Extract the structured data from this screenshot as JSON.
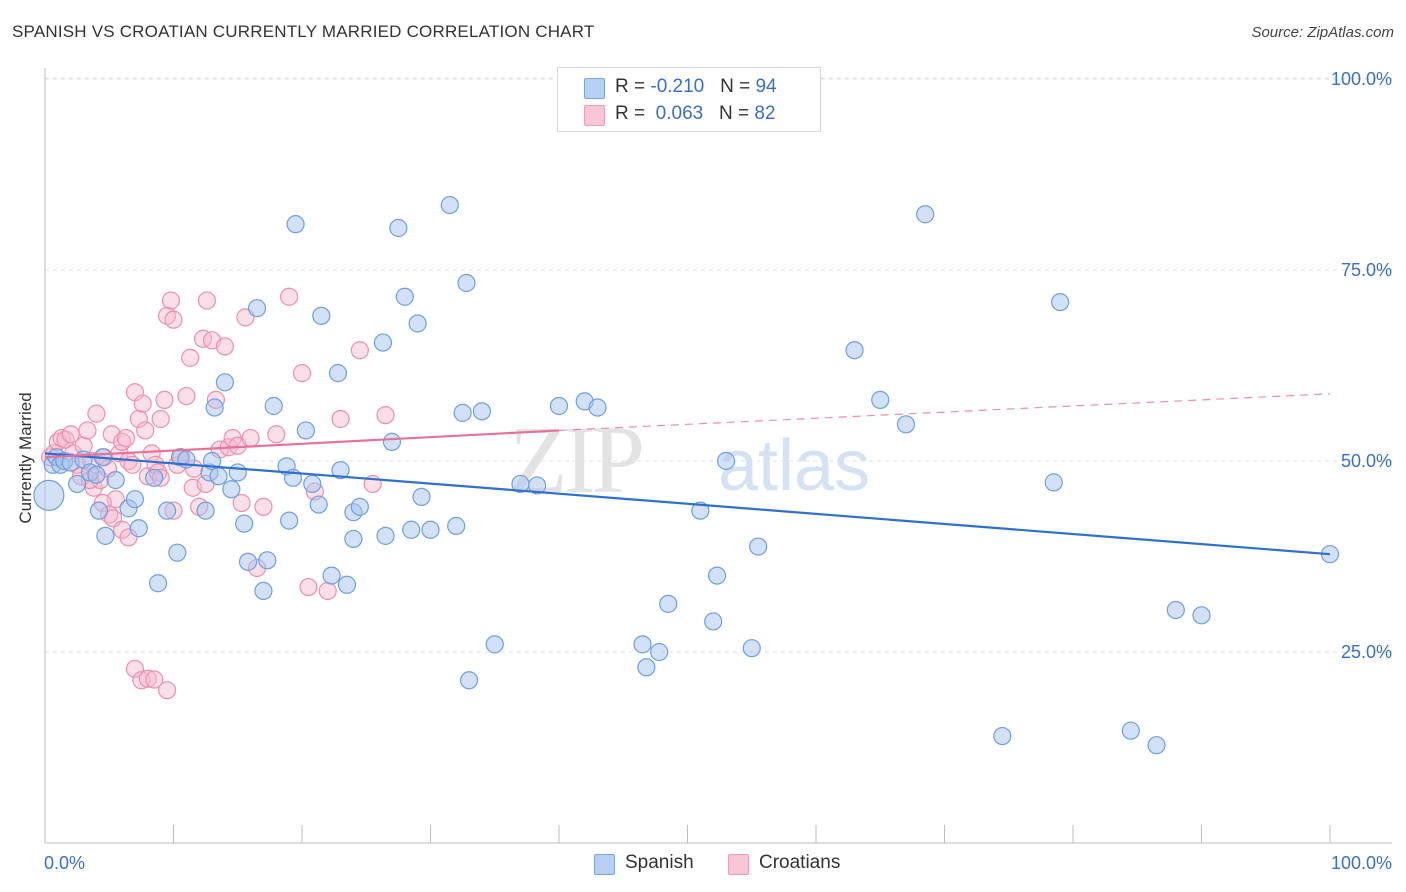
{
  "title": "SPANISH VS CROATIAN CURRENTLY MARRIED CORRELATION CHART",
  "source": "Source: ZipAtlas.com",
  "watermark": {
    "zip": "ZIP",
    "atlas": "atlas"
  },
  "legend": {
    "rows": [
      {
        "r_label": "R = ",
        "r_value": "-0.210",
        "n_label": "N = ",
        "n_value": "94"
      },
      {
        "r_label": "R = ",
        "r_value": "0.063",
        "n_label": "N = ",
        "n_value": "82"
      }
    ]
  },
  "bottom_legend": {
    "spanish": "Spanish",
    "croatians": "Croatians"
  },
  "colors": {
    "spanish_fill": "#a8c4ee",
    "spanish_stroke": "#6f9fe0",
    "spanish_line": "#2f6fcf",
    "croatians_fill": "#f6b7cb",
    "croatians_stroke": "#ee8fae",
    "croatians_line": "#e8719a",
    "axis_label": "#3a6fc9",
    "grid": "#e2e2e2"
  },
  "chart_data": {
    "type": "scatter",
    "title": "SPANISH VS CROATIAN CURRENTLY MARRIED CORRELATION CHART",
    "xlabel": "",
    "ylabel": "Currently Married",
    "xlim": [
      0,
      100
    ],
    "ylim": [
      0,
      103
    ],
    "x_tick_labels": [
      "0.0%",
      "100.0%"
    ],
    "y_tick_labels": [
      "25.0%",
      "50.0%",
      "75.0%",
      "100.0%"
    ],
    "y_ticks": [
      25,
      50,
      75,
      100
    ],
    "grid": true,
    "legend_position": "top-center",
    "series": [
      {
        "name": "Spanish",
        "r": -0.21,
        "n": 94,
        "trend": {
          "x": [
            0,
            100
          ],
          "y": [
            51.0,
            37.8
          ]
        },
        "points": [
          [
            0.3,
            45.5
          ],
          [
            0.6,
            49.5
          ],
          [
            0.9,
            50.5
          ],
          [
            1.2,
            49.5
          ],
          [
            1.5,
            50.0
          ],
          [
            2.0,
            49.8
          ],
          [
            2.5,
            47.0
          ],
          [
            3.0,
            50.2
          ],
          [
            3.5,
            48.5
          ],
          [
            4.0,
            48.2
          ],
          [
            4.5,
            50.5
          ],
          [
            5.5,
            47.5
          ],
          [
            4.2,
            43.5
          ],
          [
            4.7,
            40.2
          ],
          [
            6.5,
            43.8
          ],
          [
            7.0,
            45.0
          ],
          [
            7.3,
            41.2
          ],
          [
            8.5,
            47.8
          ],
          [
            8.8,
            34.0
          ],
          [
            9.5,
            43.5
          ],
          [
            10.5,
            50.5
          ],
          [
            10.3,
            38.0
          ],
          [
            11.0,
            50.2
          ],
          [
            12.5,
            43.5
          ],
          [
            12.8,
            48.5
          ],
          [
            13.0,
            50.0
          ],
          [
            13.5,
            48.0
          ],
          [
            13.2,
            57.0
          ],
          [
            14.0,
            60.3
          ],
          [
            14.5,
            46.3
          ],
          [
            15.0,
            48.5
          ],
          [
            15.5,
            41.8
          ],
          [
            15.8,
            36.8
          ],
          [
            16.5,
            70.0
          ],
          [
            17.0,
            33.0
          ],
          [
            17.3,
            37.0
          ],
          [
            17.8,
            57.2
          ],
          [
            18.8,
            49.3
          ],
          [
            19.0,
            42.2
          ],
          [
            19.3,
            47.8
          ],
          [
            19.5,
            81.0
          ],
          [
            20.3,
            54.0
          ],
          [
            20.8,
            47.0
          ],
          [
            21.3,
            44.3
          ],
          [
            21.5,
            69.0
          ],
          [
            22.3,
            35.0
          ],
          [
            22.8,
            61.5
          ],
          [
            23.0,
            48.8
          ],
          [
            23.5,
            33.8
          ],
          [
            24.0,
            43.3
          ],
          [
            24.0,
            39.8
          ],
          [
            24.5,
            44.0
          ],
          [
            26.3,
            65.5
          ],
          [
            26.5,
            40.2
          ],
          [
            27.0,
            52.5
          ],
          [
            27.5,
            80.5
          ],
          [
            28.0,
            71.5
          ],
          [
            28.5,
            41.0
          ],
          [
            29.0,
            68.0
          ],
          [
            29.3,
            45.3
          ],
          [
            30.0,
            41.0
          ],
          [
            31.5,
            83.5
          ],
          [
            32.0,
            41.5
          ],
          [
            32.5,
            56.3
          ],
          [
            32.8,
            73.3
          ],
          [
            33.0,
            21.3
          ],
          [
            34.0,
            56.5
          ],
          [
            35.0,
            26.0
          ],
          [
            37.0,
            47.0
          ],
          [
            38.3,
            46.8
          ],
          [
            40.0,
            57.2
          ],
          [
            42.0,
            57.8
          ],
          [
            43.0,
            57.0
          ],
          [
            46.5,
            26.0
          ],
          [
            46.8,
            23.0
          ],
          [
            47.8,
            25.0
          ],
          [
            48.5,
            31.3
          ],
          [
            51.0,
            43.5
          ],
          [
            52.0,
            29.0
          ],
          [
            52.3,
            35.0
          ],
          [
            53.0,
            50.0
          ],
          [
            55.0,
            25.5
          ],
          [
            55.5,
            38.8
          ],
          [
            63.0,
            64.5
          ],
          [
            65.0,
            58.0
          ],
          [
            67.0,
            54.8
          ],
          [
            68.5,
            82.3
          ],
          [
            74.5,
            14.0
          ],
          [
            78.5,
            47.2
          ],
          [
            79.0,
            70.8
          ],
          [
            84.5,
            14.7
          ],
          [
            86.5,
            12.8
          ],
          [
            88.0,
            30.5
          ],
          [
            90.0,
            29.8
          ],
          [
            100.0,
            37.8
          ]
        ]
      },
      {
        "name": "Croatians",
        "r": 0.063,
        "n": 82,
        "trend": {
          "x": [
            0,
            40
          ],
          "y": [
            50.5,
            54.0
          ],
          "dashed_to": {
            "x": 100,
            "y": 58.8
          }
        },
        "points": [
          [
            0.4,
            50.5
          ],
          [
            0.7,
            51.0
          ],
          [
            1.0,
            52.5
          ],
          [
            1.3,
            53.0
          ],
          [
            1.6,
            52.8
          ],
          [
            2.0,
            53.5
          ],
          [
            2.2,
            51.0
          ],
          [
            2.5,
            49.5
          ],
          [
            2.8,
            48.0
          ],
          [
            3.0,
            52.0
          ],
          [
            3.3,
            54.0
          ],
          [
            3.6,
            50.0
          ],
          [
            3.8,
            46.5
          ],
          [
            4.0,
            56.2
          ],
          [
            4.3,
            47.5
          ],
          [
            4.6,
            50.5
          ],
          [
            4.9,
            49.0
          ],
          [
            5.2,
            53.5
          ],
          [
            5.5,
            45.0
          ],
          [
            5.8,
            51.0
          ],
          [
            6.0,
            52.5
          ],
          [
            6.3,
            53.0
          ],
          [
            6.5,
            50.0
          ],
          [
            6.8,
            49.5
          ],
          [
            7.0,
            59.0
          ],
          [
            7.3,
            55.5
          ],
          [
            7.6,
            57.5
          ],
          [
            7.8,
            54.0
          ],
          [
            8.0,
            48.0
          ],
          [
            8.3,
            51.0
          ],
          [
            8.6,
            49.5
          ],
          [
            8.8,
            48.5
          ],
          [
            9.0,
            55.5
          ],
          [
            9.3,
            58.0
          ],
          [
            9.5,
            69.0
          ],
          [
            9.8,
            71.0
          ],
          [
            10.0,
            68.5
          ],
          [
            10.3,
            49.5
          ],
          [
            10.6,
            50.5
          ],
          [
            11.0,
            58.5
          ],
          [
            11.3,
            63.5
          ],
          [
            11.6,
            49.0
          ],
          [
            12.0,
            44.0
          ],
          [
            12.3,
            66.0
          ],
          [
            12.6,
            71.0
          ],
          [
            13.0,
            65.8
          ],
          [
            13.3,
            58.0
          ],
          [
            13.6,
            51.5
          ],
          [
            14.0,
            65.0
          ],
          [
            14.3,
            51.8
          ],
          [
            14.6,
            53.0
          ],
          [
            15.0,
            52.0
          ],
          [
            15.3,
            44.5
          ],
          [
            15.6,
            68.8
          ],
          [
            16.0,
            53.0
          ],
          [
            17.0,
            44.0
          ],
          [
            18.0,
            53.5
          ],
          [
            19.0,
            71.5
          ],
          [
            20.0,
            61.5
          ],
          [
            21.0,
            46.0
          ],
          [
            22.0,
            33.0
          ],
          [
            23.0,
            55.5
          ],
          [
            24.5,
            64.5
          ],
          [
            25.5,
            47.0
          ],
          [
            3.5,
            47.5
          ],
          [
            4.5,
            44.5
          ],
          [
            5.0,
            43.0
          ],
          [
            5.3,
            42.5
          ],
          [
            6.0,
            41.0
          ],
          [
            6.5,
            40.0
          ],
          [
            7.0,
            22.8
          ],
          [
            7.5,
            21.3
          ],
          [
            8.0,
            21.5
          ],
          [
            8.5,
            21.4
          ],
          [
            9.0,
            47.8
          ],
          [
            9.5,
            20.0
          ],
          [
            10.0,
            43.5
          ],
          [
            11.5,
            46.5
          ],
          [
            12.5,
            47.0
          ],
          [
            16.5,
            36.0
          ],
          [
            20.5,
            33.5
          ],
          [
            26.5,
            56.0
          ]
        ]
      }
    ]
  }
}
